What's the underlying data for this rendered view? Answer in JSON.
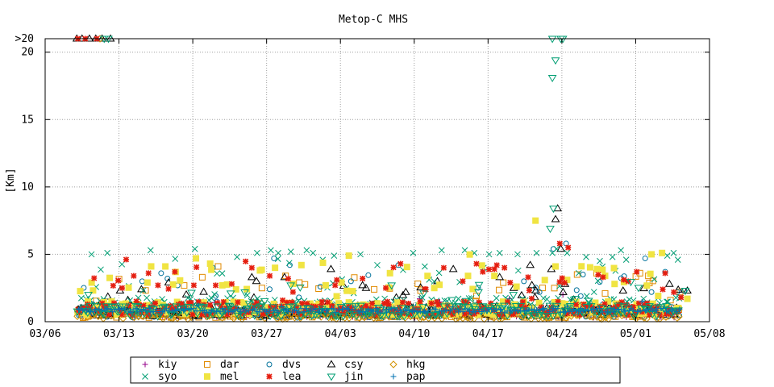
{
  "chart_data": {
    "type": "scatter",
    "title": "Metop-C MHS",
    "ylabel": "[Km]",
    "xlabel": "",
    "x_ticks": [
      "03/06",
      "03/13",
      "03/20",
      "03/27",
      "04/03",
      "04/10",
      "04/17",
      "04/24",
      "05/01",
      "05/08"
    ],
    "x_range": [
      "03/06",
      "05/08"
    ],
    "y_ticks": [
      "0",
      "5",
      "10",
      "15",
      "20",
      ">20"
    ],
    "ylim": [
      0,
      21
    ],
    "overflow_label": ">20",
    "overflow_value": 21,
    "grid": true,
    "legend_position": "bottom-center",
    "series": [
      {
        "name": "kiy",
        "marker": "plus",
        "color": "#94008a",
        "cloud": {
          "base": 0.3,
          "spread": 0.6,
          "extra": 1.5,
          "p_extra": 0.05,
          "days": [
            3,
            60
          ]
        },
        "points": [
          [
            49.1,
            2.0
          ],
          [
            50.2,
            1.0
          ],
          [
            48.5,
            1.2
          ]
        ]
      },
      {
        "name": "dar",
        "marker": "square",
        "color": "#e08a00",
        "cloud": {
          "base": 0.3,
          "spread": 0.8,
          "extra": 3.0,
          "p_extra": 0.1,
          "days": [
            3,
            60
          ]
        },
        "points": [
          [
            14.9,
            3.3
          ],
          [
            16.4,
            4.1
          ],
          [
            22.8,
            3.4
          ],
          [
            24.1,
            2.9
          ],
          [
            31.2,
            2.4
          ],
          [
            35.6,
            2.3
          ],
          [
            40.9,
            1.9
          ],
          [
            52.3,
            3.6
          ],
          [
            53.1,
            2.1
          ],
          [
            56.4,
            3.6
          ],
          [
            57.2,
            3.4
          ],
          [
            59.3,
            1.6
          ],
          [
            60.2,
            2.2
          ]
        ]
      },
      {
        "name": "dvs",
        "marker": "circle",
        "color": "#00719a",
        "cloud": {
          "base": 0.3,
          "spread": 0.8,
          "extra": 2.5,
          "p_extra": 0.1,
          "days": [
            3,
            60
          ]
        },
        "points": [
          [
            9.2,
            3.0
          ],
          [
            11.0,
            3.6
          ],
          [
            11.6,
            3.2
          ],
          [
            15.9,
            4.0
          ],
          [
            21.7,
            4.7
          ],
          [
            23.2,
            4.2
          ],
          [
            26.1,
            2.6
          ],
          [
            29.0,
            3.0
          ],
          [
            33.5,
            4.2
          ],
          [
            45.4,
            3.0
          ],
          [
            48.2,
            5.4
          ],
          [
            49.4,
            5.8
          ],
          [
            51.0,
            3.5
          ],
          [
            56.9,
            4.7
          ],
          [
            57.5,
            2.2
          ],
          [
            58.8,
            3.7
          ],
          [
            60.6,
            2.3
          ]
        ]
      },
      {
        "name": "csy",
        "marker": "triangle",
        "color": "#000000",
        "cloud": {
          "base": 0.4,
          "spread": 0.8,
          "extra": 2.0,
          "p_extra": 0.1,
          "days": [
            3,
            60
          ]
        },
        "points": [
          [
            3.0,
            21
          ],
          [
            3.5,
            21
          ],
          [
            4.2,
            21
          ],
          [
            4.8,
            21
          ],
          [
            5.4,
            21
          ],
          [
            6.2,
            21
          ],
          [
            48.4,
            7.6
          ],
          [
            48.6,
            8.4
          ],
          [
            48.0,
            3.9
          ],
          [
            48.9,
            5.4
          ],
          [
            49.3,
            2.8
          ],
          [
            46.0,
            4.2
          ],
          [
            43.1,
            3.3
          ],
          [
            38.7,
            3.9
          ],
          [
            37.2,
            3.0
          ],
          [
            34.2,
            2.2
          ],
          [
            30.1,
            2.7
          ],
          [
            27.1,
            3.9
          ],
          [
            22.7,
            3.3
          ],
          [
            19.6,
            3.3
          ],
          [
            11.7,
            2.9
          ],
          [
            7.1,
            2.3
          ],
          [
            54.8,
            2.3
          ],
          [
            59.2,
            2.8
          ],
          [
            60.9,
            2.3
          ]
        ]
      },
      {
        "name": "hkg",
        "marker": "diamond",
        "color": "#d29100",
        "cloud": {
          "base": 0.2,
          "spread": 0.5,
          "extra": 1.0,
          "p_extra": 0.05,
          "days": [
            3,
            60
          ]
        },
        "points": [
          [
            5.2,
            21
          ]
        ]
      },
      {
        "name": "syo",
        "marker": "x",
        "color": "#009d73",
        "cloud": {
          "base": 0.6,
          "spread": 1.2,
          "extra": 3.5,
          "p_extra": 0.15,
          "days": [
            3,
            60
          ]
        },
        "points": [
          [
            4.4,
            5.0
          ],
          [
            5.9,
            5.1
          ],
          [
            10.0,
            5.3
          ],
          [
            14.2,
            5.4
          ],
          [
            18.2,
            4.8
          ],
          [
            20.1,
            5.1
          ],
          [
            21.4,
            5.3
          ],
          [
            22.1,
            5.1
          ],
          [
            23.3,
            5.2
          ],
          [
            24.8,
            5.3
          ],
          [
            25.4,
            5.1
          ],
          [
            27.4,
            4.9
          ],
          [
            29.9,
            5.0
          ],
          [
            34.9,
            5.1
          ],
          [
            37.6,
            5.3
          ],
          [
            39.8,
            5.3
          ],
          [
            40.7,
            5.1
          ],
          [
            42.1,
            5.0
          ],
          [
            43.1,
            5.1
          ],
          [
            44.8,
            5.0
          ],
          [
            46.6,
            5.1
          ],
          [
            48.1,
            5.1
          ],
          [
            48.5,
            5.4
          ],
          [
            49.5,
            5.1
          ],
          [
            51.3,
            4.8
          ],
          [
            52.6,
            4.5
          ],
          [
            53.8,
            4.8
          ],
          [
            54.6,
            5.3
          ],
          [
            55.1,
            4.6
          ],
          [
            59.0,
            4.9
          ],
          [
            59.6,
            5.1
          ],
          [
            60.0,
            4.6
          ],
          [
            31.5,
            4.2
          ],
          [
            36.0,
            4.1
          ],
          [
            50.6,
            3.6
          ]
        ]
      },
      {
        "name": "mel",
        "marker": "fsquare",
        "color": "#f0e442",
        "cloud": {
          "base": 0.5,
          "spread": 1.0,
          "extra": 3.5,
          "p_extra": 0.15,
          "days": [
            3,
            60
          ]
        },
        "points": [
          [
            9.7,
            2.9
          ],
          [
            11.4,
            4.1
          ],
          [
            14.3,
            4.7
          ],
          [
            16.8,
            2.7
          ],
          [
            18.1,
            2.4
          ],
          [
            21.8,
            4.0
          ],
          [
            24.3,
            4.2
          ],
          [
            26.6,
            2.7
          ],
          [
            28.8,
            4.9
          ],
          [
            32.7,
            3.6
          ],
          [
            36.9,
            2.5
          ],
          [
            40.1,
            3.4
          ],
          [
            42.6,
            3.4
          ],
          [
            44.7,
            2.6
          ],
          [
            46.5,
            7.5
          ],
          [
            48.4,
            4.1
          ],
          [
            49.5,
            3.1
          ],
          [
            53.1,
            3.4
          ],
          [
            54.0,
            2.8
          ],
          [
            57.5,
            5.0
          ],
          [
            58.5,
            5.1
          ],
          [
            60.9,
            1.7
          ]
        ]
      },
      {
        "name": "lea",
        "marker": "star",
        "color": "#e51e10",
        "cloud": {
          "base": 0.5,
          "spread": 1.0,
          "extra": 3.5,
          "p_extra": 0.15,
          "days": [
            3,
            60
          ]
        },
        "points": [
          [
            3.1,
            21
          ],
          [
            3.8,
            21
          ],
          [
            4.9,
            21
          ],
          [
            7.3,
            2.5
          ],
          [
            8.4,
            3.4
          ],
          [
            9.8,
            3.6
          ],
          [
            10.7,
            2.7
          ],
          [
            12.3,
            3.7
          ],
          [
            14.1,
            2.7
          ],
          [
            17.7,
            2.8
          ],
          [
            19.6,
            4.0
          ],
          [
            21.3,
            3.4
          ],
          [
            23.5,
            2.2
          ],
          [
            27.5,
            2.7
          ],
          [
            30.1,
            3.2
          ],
          [
            32.3,
            2.5
          ],
          [
            33.7,
            4.3
          ],
          [
            36.1,
            2.4
          ],
          [
            37.8,
            4.0
          ],
          [
            39.6,
            3.0
          ],
          [
            40.9,
            4.3
          ],
          [
            41.5,
            3.7
          ],
          [
            42.6,
            3.9
          ],
          [
            44.1,
            2.9
          ],
          [
            45.8,
            3.3
          ],
          [
            48.8,
            5.8
          ],
          [
            49.6,
            5.5
          ],
          [
            52.9,
            3.3
          ],
          [
            55.3,
            3.0
          ],
          [
            56.1,
            3.7
          ],
          [
            58.8,
            3.6
          ],
          [
            60.3,
            1.8
          ]
        ]
      },
      {
        "name": "jin",
        "marker": "dtriangle",
        "color": "#009e73",
        "cloud": {
          "base": 0.4,
          "spread": 0.8,
          "extra": 2.0,
          "p_extra": 0.1,
          "days": [
            3,
            60
          ]
        },
        "points": [
          [
            5.6,
            21
          ],
          [
            6.0,
            21
          ],
          [
            48.1,
            21
          ],
          [
            48.9,
            21
          ],
          [
            49.1,
            21
          ],
          [
            48.4,
            19.4
          ],
          [
            48.1,
            18.1
          ],
          [
            48.2,
            8.4
          ],
          [
            47.9,
            6.9
          ],
          [
            4.1,
            2.0
          ],
          [
            17.6,
            2.1
          ],
          [
            35.9,
            2.1
          ],
          [
            41.1,
            2.2
          ],
          [
            44.4,
            2.0
          ],
          [
            60.7,
            2.3
          ]
        ]
      },
      {
        "name": "pap",
        "marker": "plus",
        "color": "#0072b2",
        "cloud": {
          "base": 0.7,
          "spread": 0.3,
          "extra": 0.5,
          "p_extra": 0.05,
          "days": [
            3,
            60
          ]
        },
        "points": [
          [
            48.2,
            1.0
          ],
          [
            49.5,
            1.1
          ],
          [
            50.8,
            1.0
          ]
        ]
      }
    ]
  }
}
